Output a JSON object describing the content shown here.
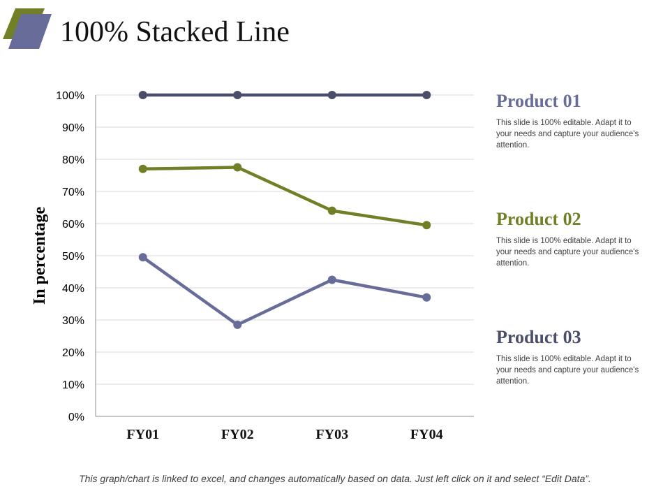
{
  "title": "100% Stacked Line",
  "colors": {
    "product_01": "#4b4e6b",
    "product_02": "#717f26",
    "product_03": "#686c98",
    "logo_front": "#686c98",
    "logo_back": "#717f26"
  },
  "chart_data": {
    "type": "line",
    "title": "",
    "xlabel": "",
    "ylabel": "In percentage",
    "categories": [
      "FY01",
      "FY02",
      "FY03",
      "FY04"
    ],
    "yticks": [
      "0%",
      "10%",
      "20%",
      "30%",
      "40%",
      "50%",
      "60%",
      "70%",
      "80%",
      "90%",
      "100%"
    ],
    "ylim": [
      0,
      100
    ],
    "grid": true,
    "series": [
      {
        "name": "Product 01",
        "values": [
          100,
          100,
          100,
          100
        ]
      },
      {
        "name": "Product 02",
        "values": [
          77,
          77.5,
          64,
          59.5
        ]
      },
      {
        "name": "Product 03",
        "values": [
          49.5,
          28.5,
          42.5,
          37
        ]
      }
    ]
  },
  "legend": [
    {
      "name": "Product 01",
      "description": "This slide is 100% editable. Adapt it to your needs and capture your audience's attention."
    },
    {
      "name": "Product 02",
      "description": "This slide is 100% editable. Adapt it to your needs and capture your audience's attention."
    },
    {
      "name": "Product 03",
      "description": "This slide is 100% editable. Adapt it to your needs and capture your audience's attention."
    }
  ],
  "footer": "This graph/chart is linked to excel, and changes automatically based on data. Just left click on it and select “Edit Data”."
}
